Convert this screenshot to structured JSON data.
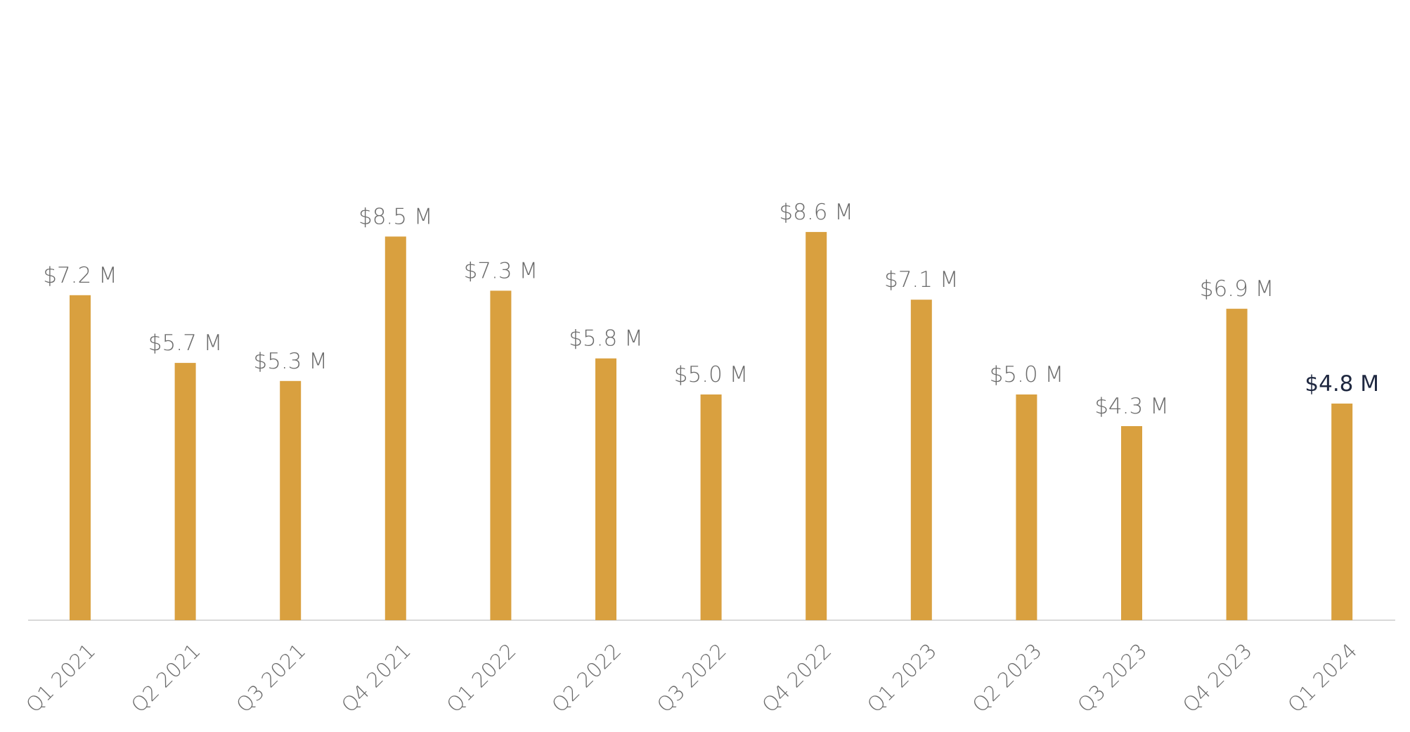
{
  "colors": {
    "bar": "#D9A03F",
    "axis_line": "#d9d9d9",
    "label_default": "#6b6b6b",
    "label_highlight": "#1f2840"
  },
  "chart_data": {
    "type": "bar",
    "title": "",
    "xlabel": "",
    "ylabel": "",
    "categories": [
      "Q1 2021",
      "Q2 2021",
      "Q3 2021",
      "Q4 2021",
      "Q1 2022",
      "Q2 2022",
      "Q3 2022",
      "Q4 2022",
      "Q1 2023",
      "Q2 2023",
      "Q3 2023",
      "Q4 2023",
      "Q1 2024"
    ],
    "values": [
      7.2,
      5.7,
      5.3,
      8.5,
      7.3,
      5.8,
      5.0,
      8.6,
      7.1,
      5.0,
      4.3,
      6.9,
      4.8
    ],
    "data_labels": [
      "$7.2 M",
      "$5.7 M",
      "$5.3 M",
      "$8.5 M",
      "$7.3 M",
      "$5.8 M",
      "$5.0 M",
      "$8.6 M",
      "$7.1 M",
      "$5.0 M",
      "$4.3 M",
      "$6.9 M",
      "$4.8 M"
    ],
    "highlighted_label_index": 12,
    "ylim": [
      0,
      12.4
    ],
    "grid": false,
    "legend": "none",
    "y_axis_visible": false
  }
}
